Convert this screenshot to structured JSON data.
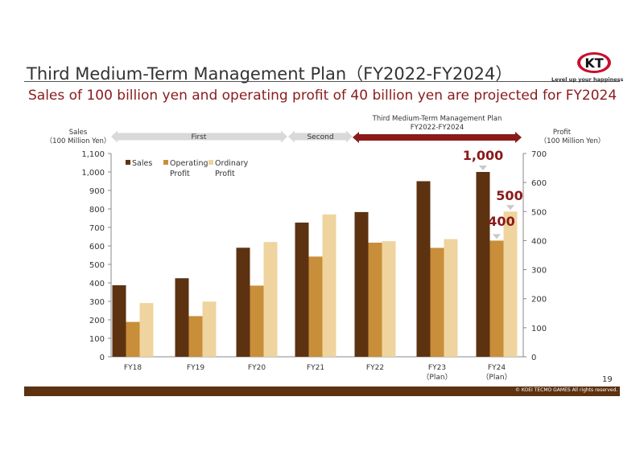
{
  "header": {
    "title": "Third Medium-Term Management Plan（FY2022-FY2024）",
    "subtitle": "Sales of 100 billion yen and operating profit of 40 billion yen are projected for FY2024"
  },
  "logo": {
    "mark": "KT",
    "tagline": "Level up your happiness"
  },
  "footer": {
    "page_number": "19",
    "copyright": "© KOEI TECMO GAMES All rights reserved."
  },
  "colors": {
    "sales": "#5c3211",
    "operating": "#c98e3a",
    "ordinary": "#efd49f",
    "accent": "#8b1a1a",
    "gray_arrow": "#d9d9d9"
  },
  "plan_labels": {
    "first": "First",
    "second": "Second",
    "third_line1": "Third Medium-Term Management Plan",
    "third_line2": "FY2022-FY2024"
  },
  "chart_data": {
    "type": "bar",
    "categories": [
      "FY18",
      "FY19",
      "FY20",
      "FY21",
      "FY22",
      "FY23\n（Plan）",
      "FY24\n（Plan）"
    ],
    "series": [
      {
        "name": "Sales",
        "axis": "left",
        "values": [
          387,
          425,
          590,
          726,
          783,
          950,
          1000
        ]
      },
      {
        "name": "Operating Profit",
        "axis": "right",
        "values": [
          120,
          140,
          245,
          345,
          393,
          375,
          400
        ]
      },
      {
        "name": "Ordinary Profit",
        "axis": "right",
        "values": [
          185,
          190,
          395,
          490,
          398,
          405,
          500
        ]
      }
    ],
    "left_axis": {
      "label_line1": "Sales",
      "label_line2": "（100 Million Yen）",
      "ylim": [
        0,
        1100
      ],
      "ticks": [
        0,
        100,
        200,
        300,
        400,
        500,
        600,
        700,
        800,
        900,
        1000,
        1100
      ]
    },
    "right_axis": {
      "label_line1": "Profit",
      "label_line2": "（100 Million Yen）",
      "ylim": [
        0,
        700
      ],
      "ticks": [
        0,
        100,
        200,
        300,
        400,
        500,
        600,
        700
      ]
    },
    "legend": [
      {
        "line1": "Sales",
        "line2": ""
      },
      {
        "line1": "Operating",
        "line2": "Profit"
      },
      {
        "line1": "Ordinary",
        "line2": "Profit"
      }
    ],
    "legend_position": "top-left",
    "annotations": [
      {
        "text": "1,000",
        "series": "Sales",
        "index": 6
      },
      {
        "text": "500",
        "series": "Ordinary Profit",
        "index": 6
      },
      {
        "text": "400",
        "series": "Operating Profit",
        "index": 6
      }
    ],
    "grid": false
  }
}
